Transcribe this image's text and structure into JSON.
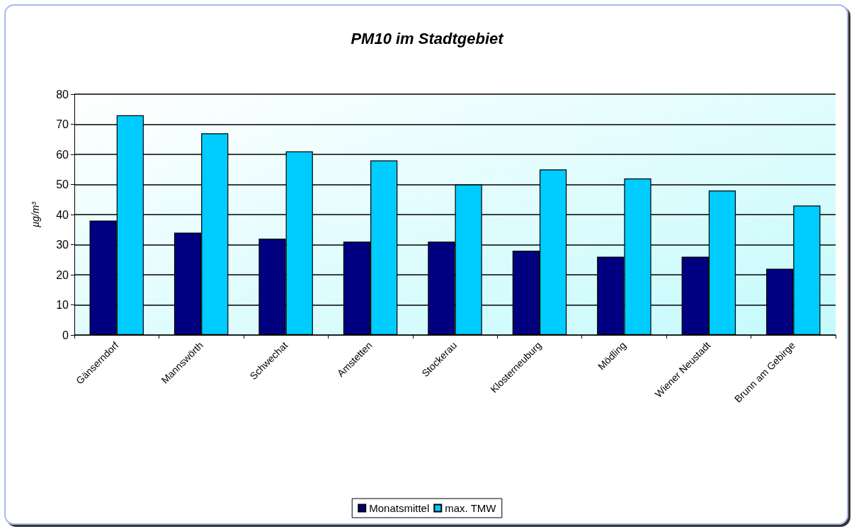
{
  "chart_data": {
    "type": "bar",
    "title": "PM10 im Stadtgebiet",
    "ylabel": "µg/m³",
    "categories": [
      "Gänserndorf",
      "Mannswörth",
      "Schwechat",
      "Amstetten",
      "Stockerau",
      "Klosterneuburg",
      "Mödling",
      "Wiener Neustadt",
      "Brunn am Gebirge"
    ],
    "series": [
      {
        "name": "Monatsmittel",
        "color": "#000080",
        "values": [
          38,
          34,
          32,
          31,
          31,
          28,
          26,
          26,
          22
        ]
      },
      {
        "name": "max. TMW",
        "color": "#00ccff",
        "values": [
          73,
          67,
          61,
          58,
          50,
          55,
          52,
          48,
          43
        ]
      }
    ],
    "ylim": [
      0,
      80
    ],
    "yticks": [
      0,
      10,
      20,
      30,
      40,
      50,
      60,
      70,
      80
    ],
    "grid": "y",
    "legend": "bottom"
  }
}
